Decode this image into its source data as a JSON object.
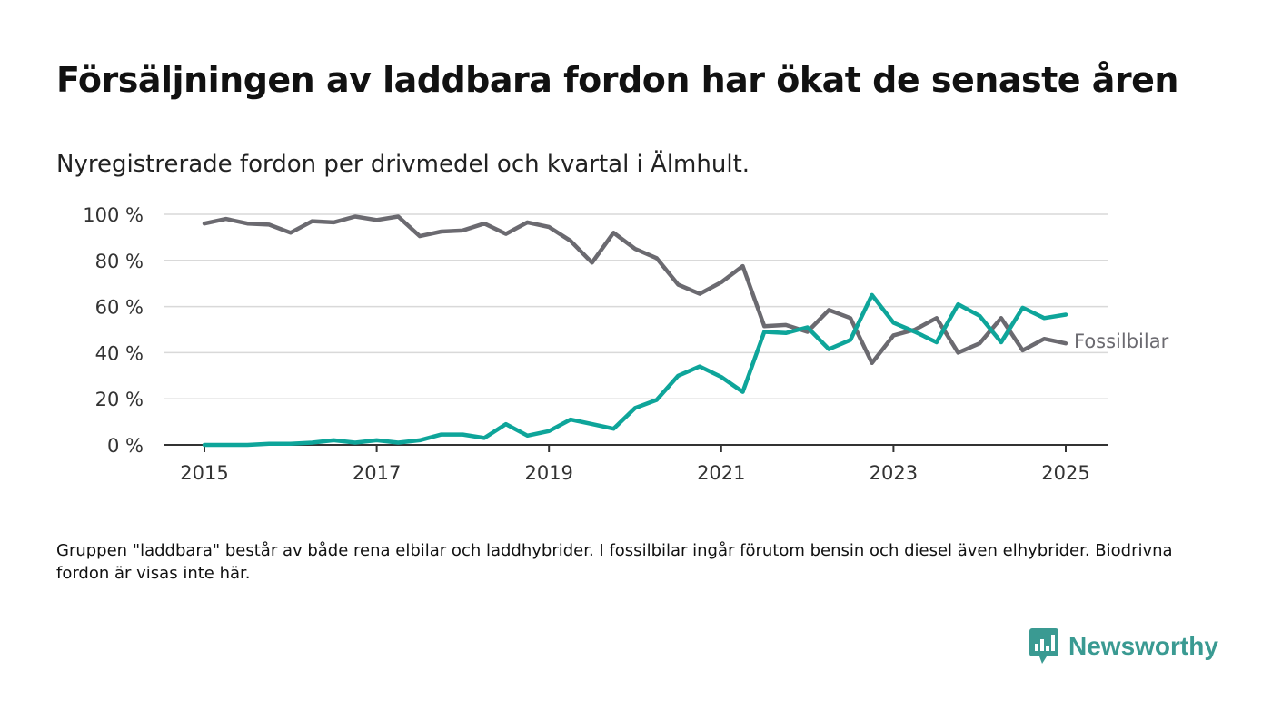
{
  "header": {
    "title": "Försäljningen av laddbara fordon har ökat de senaste åren",
    "subtitle": "Nyregistrerade fordon per drivmedel och kvartal i Älmhult."
  },
  "footnote": "Gruppen \"laddbara\" består av både rena elbilar och laddhybrider. I fossilbilar ingår förutom bensin och diesel även elhybrider. Biodrivna fordon är visas inte här.",
  "brand": {
    "name": "Newsworthy",
    "icon": "bar-chart-bubble-icon",
    "color": "#3a9a92"
  },
  "chart_data": {
    "type": "line",
    "title": "Försäljningen av laddbara fordon har ökat de senaste åren",
    "subtitle": "Nyregistrerade fordon per drivmedel och kvartal i Älmhult.",
    "xlabel": "",
    "ylabel": "",
    "x_ticks": [
      "2015",
      "2017",
      "2019",
      "2021",
      "2023",
      "2025"
    ],
    "y_ticks": [
      "0 %",
      "20 %",
      "40 %",
      "60 %",
      "80 %",
      "100 %"
    ],
    "xlim": [
      "2015-Q1",
      "2025-Q1"
    ],
    "ylim": [
      0,
      100
    ],
    "grid": true,
    "x": [
      "2015-Q1",
      "2015-Q2",
      "2015-Q3",
      "2015-Q4",
      "2016-Q1",
      "2016-Q2",
      "2016-Q3",
      "2016-Q4",
      "2017-Q1",
      "2017-Q2",
      "2017-Q3",
      "2017-Q4",
      "2018-Q1",
      "2018-Q2",
      "2018-Q3",
      "2018-Q4",
      "2019-Q1",
      "2019-Q2",
      "2019-Q3",
      "2019-Q4",
      "2020-Q1",
      "2020-Q2",
      "2020-Q3",
      "2020-Q4",
      "2021-Q1",
      "2021-Q2",
      "2021-Q3",
      "2021-Q4",
      "2022-Q1",
      "2022-Q2",
      "2022-Q3",
      "2022-Q4",
      "2023-Q1",
      "2023-Q2",
      "2023-Q3",
      "2023-Q4",
      "2024-Q1",
      "2024-Q2",
      "2024-Q3",
      "2024-Q4",
      "2025-Q1"
    ],
    "series": [
      {
        "name": "Fossilbilar",
        "color": "#6b6a70",
        "values": [
          96,
          98,
          96,
          95.5,
          92,
          97,
          96.5,
          99,
          97.5,
          99,
          90.5,
          92.5,
          93,
          96,
          91.5,
          96.5,
          94.5,
          88.5,
          79,
          92,
          85,
          81,
          69.5,
          65.5,
          70.5,
          77.5,
          51.5,
          52,
          49,
          58.5,
          55,
          35.5,
          47.5,
          50,
          55,
          40,
          44,
          55,
          41,
          46,
          44
        ]
      },
      {
        "name": "",
        "color": "#0ea59a",
        "values": [
          0,
          0,
          0,
          0.5,
          0.5,
          1,
          2,
          1,
          2,
          1,
          2,
          4.5,
          4.5,
          3,
          9,
          4,
          6,
          11,
          9,
          7,
          16,
          19.5,
          30,
          34,
          29.5,
          23,
          49,
          48.5,
          51,
          41.5,
          45.5,
          65,
          53,
          49,
          44.5,
          61,
          56,
          44.5,
          59.5,
          55,
          56.5
        ]
      }
    ]
  }
}
